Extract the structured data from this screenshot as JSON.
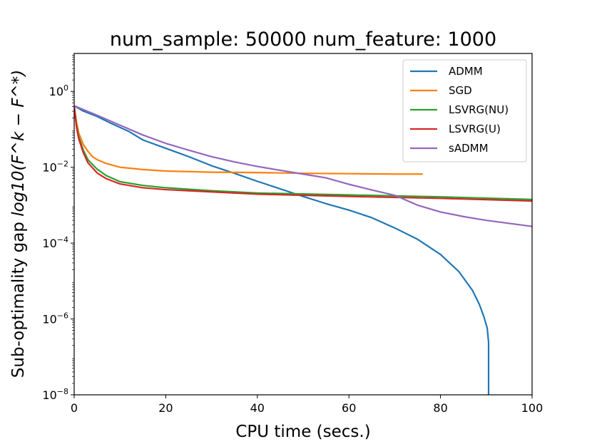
{
  "chart_data": {
    "type": "line",
    "title": "num_sample: 50000 num_feature: 1000",
    "xlabel": "CPU time (secs.)",
    "ylabel_prefix": "Sub-optimality gap ",
    "ylabel_math": "log10(F^k − F^*)",
    "xlim": [
      0,
      100
    ],
    "ylim_log10": [
      -8,
      1
    ],
    "y_scale": "log",
    "x_ticks": [
      0,
      20,
      40,
      60,
      80,
      100
    ],
    "x_tick_labels": [
      "0",
      "20",
      "40",
      "60",
      "80",
      "100"
    ],
    "y_ticks_log10": [
      0,
      -2,
      -4,
      -6,
      -8
    ],
    "y_tick_labels": [
      "10^0",
      "10^−2",
      "10^−4",
      "10^−6",
      "10^−8"
    ],
    "legend_position": "top-right",
    "series": [
      {
        "name": "ADMM",
        "color": "#1f77b4",
        "x": [
          0,
          2,
          5,
          8,
          12,
          15,
          20,
          25,
          30,
          35,
          40,
          45,
          50,
          55,
          60,
          65,
          70,
          75,
          80,
          84,
          87,
          88.5,
          89.5,
          90.2,
          90.5,
          90.5
        ],
        "log10_y": [
          -0.38,
          -0.52,
          -0.66,
          -0.84,
          -1.06,
          -1.28,
          -1.5,
          -1.72,
          -1.96,
          -2.16,
          -2.37,
          -2.57,
          -2.77,
          -2.96,
          -3.13,
          -3.33,
          -3.6,
          -3.9,
          -4.3,
          -4.75,
          -5.25,
          -5.62,
          -5.95,
          -6.24,
          -6.62,
          -8
        ]
      },
      {
        "name": "SGD",
        "color": "#ff7f0e",
        "x": [
          0,
          0.5,
          1,
          2,
          3,
          4,
          5,
          7,
          10,
          15,
          20,
          30,
          40,
          50,
          60,
          70,
          76
        ],
        "log10_y": [
          -0.38,
          -0.8,
          -1.1,
          -1.4,
          -1.58,
          -1.72,
          -1.8,
          -1.9,
          -2.0,
          -2.06,
          -2.1,
          -2.13,
          -2.14,
          -2.16,
          -2.17,
          -2.18,
          -2.18
        ]
      },
      {
        "name": "LSVRG(NU)",
        "color": "#2ca02c",
        "x": [
          0,
          0.5,
          1,
          2,
          3,
          5,
          7,
          10,
          15,
          20,
          30,
          40,
          60,
          80,
          100
        ],
        "log10_y": [
          -0.38,
          -0.9,
          -1.2,
          -1.55,
          -1.8,
          -2.05,
          -2.22,
          -2.38,
          -2.48,
          -2.54,
          -2.62,
          -2.68,
          -2.73,
          -2.78,
          -2.85
        ]
      },
      {
        "name": "LSVRG(U)",
        "color": "#d62728",
        "x": [
          0,
          0.5,
          1,
          2,
          3,
          5,
          7,
          10,
          15,
          20,
          30,
          40,
          60,
          80,
          100
        ],
        "log10_y": [
          -0.38,
          -0.95,
          -1.25,
          -1.62,
          -1.88,
          -2.15,
          -2.3,
          -2.44,
          -2.54,
          -2.59,
          -2.65,
          -2.71,
          -2.77,
          -2.82,
          -2.89
        ]
      },
      {
        "name": "sADMM",
        "color": "#9467bd",
        "x": [
          0,
          5,
          10,
          15,
          20,
          25,
          30,
          35,
          40,
          45,
          50,
          55,
          60,
          65,
          70,
          75,
          80,
          85,
          90,
          95,
          100
        ],
        "log10_y": [
          -0.38,
          -0.63,
          -0.89,
          -1.15,
          -1.37,
          -1.55,
          -1.72,
          -1.86,
          -1.98,
          -2.08,
          -2.18,
          -2.28,
          -2.45,
          -2.6,
          -2.74,
          -3.0,
          -3.18,
          -3.3,
          -3.4,
          -3.48,
          -3.56
        ]
      }
    ]
  }
}
